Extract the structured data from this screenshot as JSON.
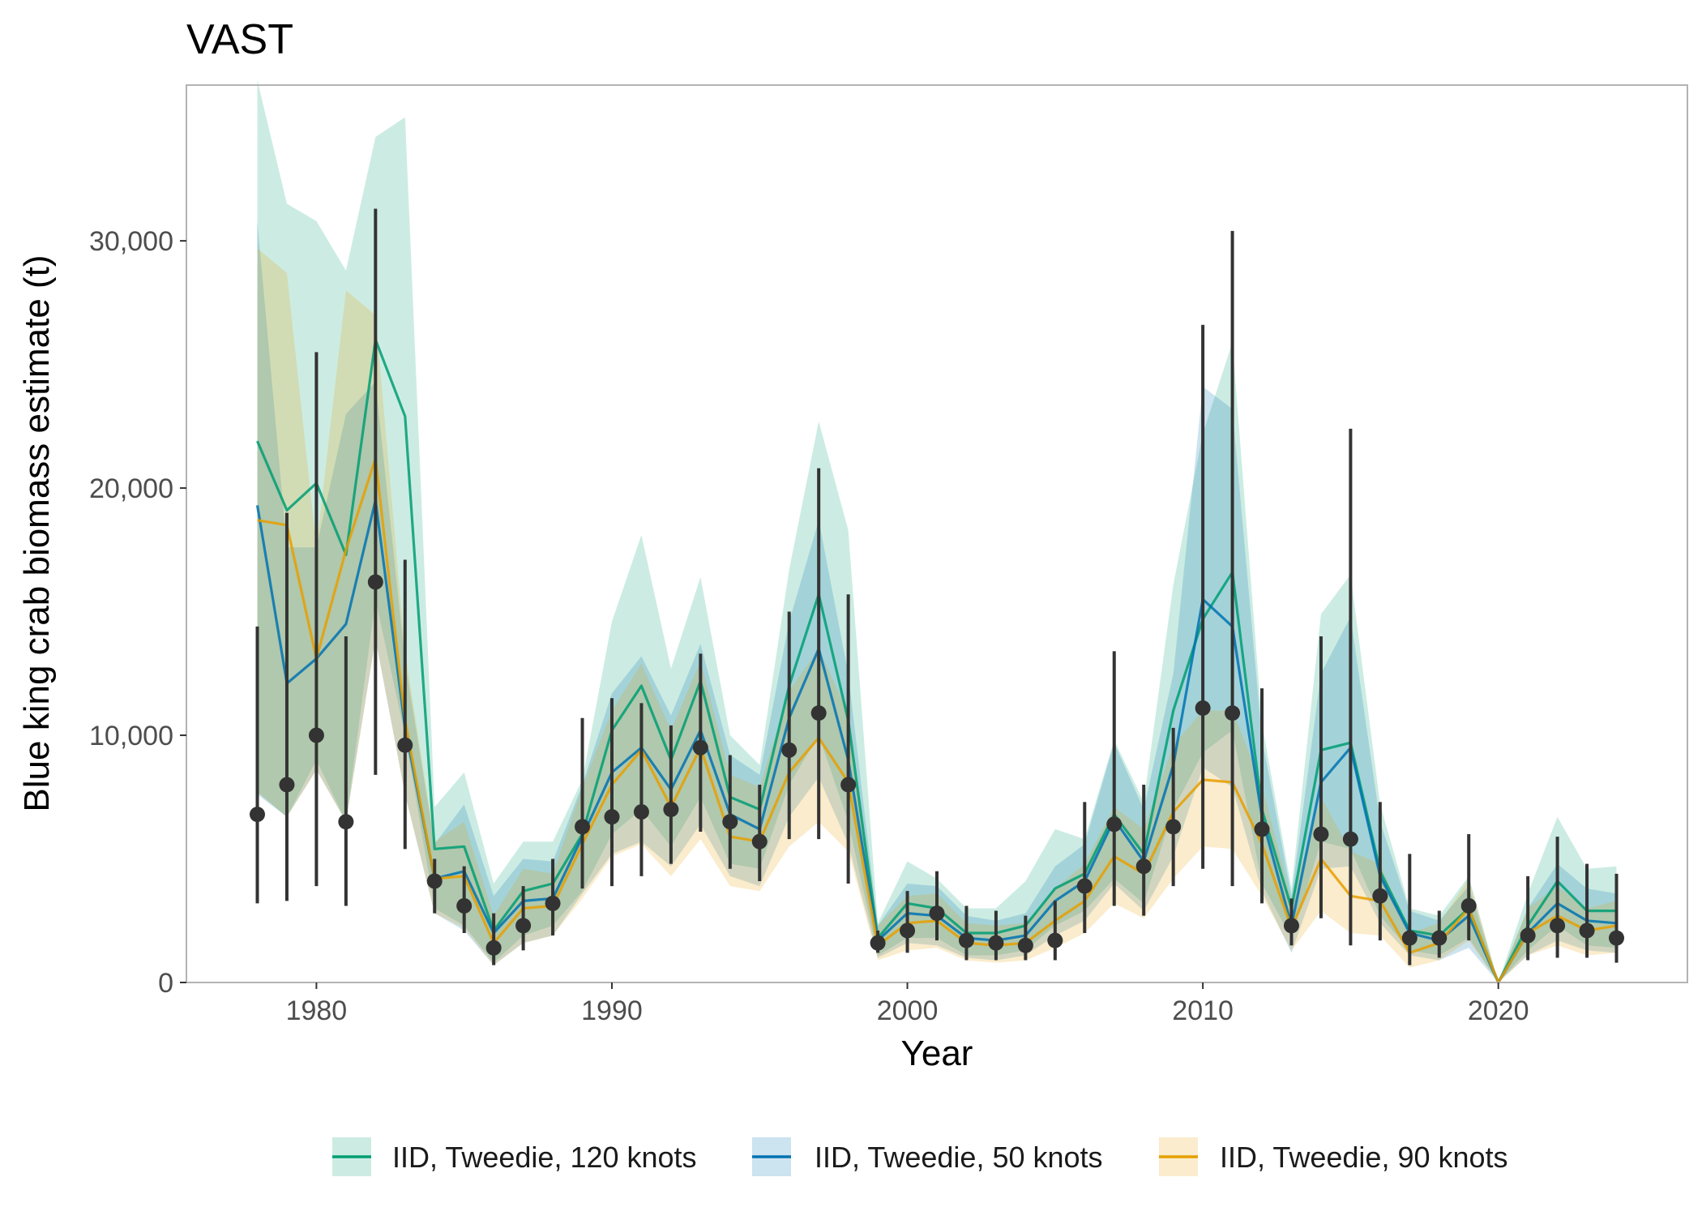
{
  "chart_data": {
    "type": "line",
    "title": "VAST",
    "xlabel": "Year",
    "ylabel": "Blue king crab biomass estimate (t)",
    "xlim": [
      1975.6,
      2026.4
    ],
    "ylim": [
      0,
      36300
    ],
    "xticks": [
      1980,
      1990,
      2000,
      2010,
      2020
    ],
    "xtick_labels": [
      "1980",
      "1990",
      "2000",
      "2010",
      "2020"
    ],
    "yticks": [
      0,
      10000,
      20000,
      30000
    ],
    "ytick_labels": [
      "0",
      "10,000",
      "20,000",
      "30,000"
    ],
    "grid": false,
    "legend_position": "bottom",
    "x": [
      1978,
      1979,
      1980,
      1981,
      1982,
      1983,
      1984,
      1985,
      1986,
      1987,
      1988,
      1989,
      1990,
      1991,
      1992,
      1993,
      1994,
      1995,
      1996,
      1997,
      1998,
      1999,
      2000,
      2001,
      2002,
      2003,
      2004,
      2005,
      2006,
      2007,
      2008,
      2009,
      2010,
      2011,
      2012,
      2013,
      2014,
      2015,
      2016,
      2017,
      2018,
      2019,
      2020,
      2021,
      2022,
      2023,
      2024
    ],
    "series": [
      {
        "name": "IID, Tweedie, 120 knots",
        "color": "#009E73",
        "values": [
          21900,
          19100,
          20200,
          17300,
          26000,
          22900,
          5400,
          5500,
          2100,
          3700,
          4000,
          6000,
          10200,
          12000,
          9000,
          12200,
          7500,
          7000,
          12000,
          15700,
          10600,
          1800,
          3200,
          3000,
          2000,
          2000,
          2300,
          3800,
          4400,
          6800,
          5200,
          11000,
          14700,
          16600,
          7000,
          3000,
          9400,
          9700,
          4500,
          2100,
          1900,
          3000,
          0,
          2300,
          4100,
          2900,
          2900
        ],
        "lower": [
          7700,
          6700,
          9000,
          6500,
          15500,
          10000,
          3000,
          2300,
          800,
          1900,
          2300,
          3700,
          6000,
          7000,
          5500,
          7500,
          4800,
          4600,
          8000,
          10000,
          6500,
          1100,
          1800,
          1800,
          1100,
          1100,
          1300,
          2300,
          2900,
          4200,
          3200,
          7000,
          9300,
          10200,
          4000,
          1800,
          5700,
          5400,
          2700,
          1300,
          1100,
          1800,
          0,
          1300,
          2300,
          1500,
          1400
        ],
        "upper": [
          36500,
          31500,
          30800,
          28800,
          34200,
          35000,
          7100,
          8500,
          4000,
          5700,
          5700,
          8200,
          14600,
          18100,
          12700,
          16400,
          10000,
          8800,
          16700,
          22700,
          18300,
          2400,
          4900,
          4200,
          3000,
          3000,
          4100,
          6200,
          5800,
          9800,
          7300,
          16100,
          22200,
          25900,
          10500,
          3800,
          14900,
          16500,
          7200,
          3000,
          2700,
          4300,
          0,
          3600,
          6700,
          4600,
          4700
        ]
      },
      {
        "name": "IID, Tweedie, 50 knots",
        "color": "#0072B2",
        "values": [
          19300,
          12100,
          13100,
          14500,
          19500,
          10300,
          4200,
          4500,
          2000,
          3300,
          3400,
          5900,
          8500,
          9500,
          7800,
          10200,
          6800,
          6200,
          10700,
          13500,
          9000,
          1700,
          2800,
          2700,
          1800,
          1700,
          1900,
          3300,
          4100,
          6600,
          4900,
          8800,
          15500,
          14400,
          6700,
          2300,
          8100,
          9500,
          4300,
          2000,
          1700,
          2700,
          0,
          2000,
          3200,
          2500,
          2400
        ],
        "lower": [
          7600,
          6700,
          8600,
          6500,
          13900,
          7600,
          2800,
          2100,
          700,
          1600,
          1900,
          3600,
          5200,
          5700,
          4700,
          6400,
          4300,
          3900,
          6700,
          8300,
          5600,
          1000,
          1600,
          1500,
          1000,
          900,
          1100,
          1900,
          2500,
          4000,
          2900,
          5100,
          8700,
          7900,
          3700,
          1200,
          4600,
          4700,
          2400,
          1100,
          900,
          1400,
          0,
          1100,
          1700,
          1300,
          1200
        ],
        "upper": [
          30800,
          17600,
          17600,
          23000,
          24300,
          13000,
          5600,
          7200,
          3500,
          5000,
          4900,
          8000,
          11700,
          13200,
          10800,
          13700,
          9200,
          8400,
          14600,
          18700,
          12500,
          2300,
          4000,
          3900,
          2700,
          2500,
          2800,
          4700,
          5600,
          9700,
          7000,
          12500,
          24100,
          23200,
          9900,
          3500,
          12500,
          14800,
          6500,
          2900,
          2500,
          3900,
          0,
          3000,
          4800,
          3800,
          3600
        ]
      },
      {
        "name": "IID, Tweedie, 90 knots",
        "color": "#E69F00",
        "values": [
          18700,
          18500,
          13100,
          17500,
          21200,
          10600,
          4200,
          4300,
          1600,
          3000,
          3100,
          5600,
          8000,
          9400,
          7100,
          9500,
          5900,
          5700,
          8500,
          9900,
          8100,
          1500,
          2400,
          2500,
          1600,
          1500,
          1600,
          2500,
          3300,
          5100,
          4400,
          6900,
          8200,
          8100,
          5600,
          2200,
          5000,
          3500,
          3300,
          1200,
          1600,
          3000,
          0,
          2000,
          2700,
          2100,
          2300
        ],
        "lower": [
          7700,
          6700,
          8600,
          6500,
          13900,
          7600,
          2800,
          2200,
          700,
          1600,
          1900,
          3400,
          5100,
          5600,
          4300,
          5800,
          3900,
          3700,
          5500,
          6500,
          5300,
          900,
          1300,
          1400,
          900,
          800,
          900,
          1400,
          2000,
          3200,
          2600,
          4200,
          5500,
          5400,
          3500,
          1300,
          2900,
          2000,
          1900,
          600,
          900,
          1700,
          0,
          1100,
          1500,
          1100,
          1200
        ],
        "upper": [
          29700,
          28700,
          17600,
          28000,
          27000,
          13400,
          5700,
          6500,
          2700,
          4600,
          4400,
          7900,
          11000,
          12900,
          10200,
          13000,
          8400,
          7900,
          11800,
          13500,
          10900,
          2300,
          3500,
          3600,
          2400,
          2300,
          2400,
          3800,
          4800,
          7100,
          6200,
          9600,
          11000,
          11000,
          8000,
          3300,
          7500,
          5300,
          4800,
          2000,
          2400,
          4200,
          0,
          3000,
          3900,
          3000,
          3300
        ]
      }
    ],
    "observed": {
      "color": "#333333",
      "values": [
        6800,
        8000,
        10000,
        6500,
        16200,
        9600,
        4100,
        3100,
        1400,
        2300,
        3200,
        6300,
        6700,
        6900,
        7000,
        9500,
        6500,
        5700,
        9400,
        10900,
        8000,
        1600,
        2100,
        2800,
        1700,
        1600,
        1500,
        1700,
        3900,
        6400,
        4700,
        6300,
        11100,
        10900,
        6200,
        2300,
        6000,
        5800,
        3500,
        1800,
        1800,
        3100,
        null,
        1900,
        2300,
        2100,
        1800
      ],
      "lower": [
        3200,
        3300,
        3900,
        3100,
        8400,
        5400,
        2800,
        2000,
        700,
        1300,
        1900,
        3800,
        3900,
        4300,
        4800,
        6100,
        4600,
        4100,
        5800,
        5800,
        4000,
        1200,
        1200,
        1700,
        900,
        900,
        900,
        900,
        2000,
        3100,
        2700,
        3900,
        4600,
        3900,
        3200,
        1500,
        2600,
        1500,
        1700,
        700,
        1000,
        1700,
        null,
        900,
        1000,
        1000,
        800
      ],
      "upper": [
        14400,
        19000,
        25500,
        14000,
        31300,
        17100,
        5000,
        4700,
        2800,
        3900,
        5000,
        10700,
        11500,
        11300,
        10400,
        13300,
        9200,
        8000,
        15000,
        20800,
        15700,
        2100,
        3700,
        4500,
        3100,
        2900,
        2700,
        3300,
        7300,
        13400,
        8000,
        10300,
        26600,
        30400,
        11900,
        3400,
        14000,
        22400,
        7300,
        5200,
        2900,
        6000,
        null,
        4300,
        5900,
        4800,
        4400
      ]
    }
  }
}
